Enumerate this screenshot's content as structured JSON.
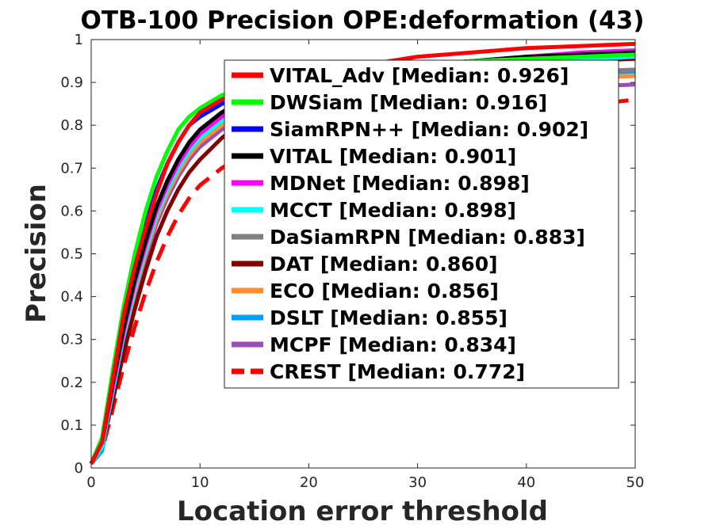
{
  "chart_data": {
    "type": "line",
    "title": "OTB-100 Precision OPE:deformation (43)",
    "xlabel": "Location error threshold",
    "ylabel": "Precision",
    "xlim": [
      0,
      50
    ],
    "ylim": [
      0,
      1
    ],
    "xticks": [
      "0",
      "10",
      "20",
      "30",
      "40",
      "50"
    ],
    "yticks": [
      "0",
      "0.1",
      "0.2",
      "0.3",
      "0.4",
      "0.5",
      "0.6",
      "0.7",
      "0.8",
      "0.9",
      "1"
    ],
    "grid": false,
    "legend_position": "top-right",
    "x": [
      0,
      1,
      2,
      3,
      4,
      5,
      6,
      7,
      8,
      9,
      10,
      12,
      14,
      16,
      18,
      20,
      25,
      30,
      35,
      40,
      45,
      50
    ],
    "series": [
      {
        "name": "VITAL_Adv [Median: 0.926]",
        "color": "#ff0000",
        "dash": "solid",
        "values": [
          0.01,
          0.06,
          0.21,
          0.36,
          0.47,
          0.56,
          0.64,
          0.71,
          0.76,
          0.8,
          0.83,
          0.86,
          0.88,
          0.9,
          0.91,
          0.92,
          0.94,
          0.96,
          0.97,
          0.98,
          0.985,
          0.99
        ]
      },
      {
        "name": "DWSiam [Median: 0.916]",
        "color": "#00ff00",
        "dash": "solid",
        "values": [
          0.01,
          0.07,
          0.23,
          0.38,
          0.5,
          0.6,
          0.68,
          0.74,
          0.79,
          0.82,
          0.84,
          0.87,
          0.89,
          0.9,
          0.91,
          0.92,
          0.93,
          0.94,
          0.95,
          0.955,
          0.96,
          0.965
        ]
      },
      {
        "name": "SiamRPN++ [Median: 0.902]",
        "color": "#0000ff",
        "dash": "solid",
        "values": [
          0.01,
          0.07,
          0.22,
          0.36,
          0.48,
          0.57,
          0.65,
          0.71,
          0.76,
          0.8,
          0.82,
          0.85,
          0.87,
          0.89,
          0.9,
          0.91,
          0.93,
          0.94,
          0.95,
          0.955,
          0.96,
          0.965
        ]
      },
      {
        "name": "VITAL [Median: 0.901]",
        "color": "#000000",
        "dash": "solid",
        "values": [
          0.01,
          0.06,
          0.2,
          0.33,
          0.44,
          0.53,
          0.61,
          0.67,
          0.72,
          0.76,
          0.79,
          0.83,
          0.86,
          0.88,
          0.89,
          0.9,
          0.92,
          0.94,
          0.95,
          0.96,
          0.965,
          0.97
        ]
      },
      {
        "name": "MDNet [Median: 0.898]",
        "color": "#ff00ff",
        "dash": "solid",
        "values": [
          0.01,
          0.06,
          0.19,
          0.32,
          0.43,
          0.52,
          0.6,
          0.66,
          0.71,
          0.75,
          0.78,
          0.82,
          0.85,
          0.87,
          0.89,
          0.9,
          0.92,
          0.94,
          0.95,
          0.96,
          0.97,
          0.975
        ]
      },
      {
        "name": "MCCT [Median: 0.898]",
        "color": "#00ffff",
        "dash": "solid",
        "values": [
          0.01,
          0.05,
          0.18,
          0.31,
          0.42,
          0.51,
          0.59,
          0.65,
          0.7,
          0.74,
          0.77,
          0.81,
          0.84,
          0.86,
          0.88,
          0.89,
          0.91,
          0.93,
          0.94,
          0.95,
          0.955,
          0.96
        ]
      },
      {
        "name": "DaSiamRPN [Median: 0.883]",
        "color": "#808080",
        "dash": "solid",
        "values": [
          0.01,
          0.06,
          0.19,
          0.32,
          0.43,
          0.52,
          0.59,
          0.65,
          0.7,
          0.74,
          0.77,
          0.81,
          0.83,
          0.85,
          0.86,
          0.87,
          0.89,
          0.9,
          0.91,
          0.92,
          0.925,
          0.93
        ]
      },
      {
        "name": "DAT [Median: 0.860]",
        "color": "#800000",
        "dash": "solid",
        "values": [
          0.01,
          0.05,
          0.16,
          0.27,
          0.37,
          0.46,
          0.54,
          0.6,
          0.65,
          0.69,
          0.72,
          0.77,
          0.81,
          0.83,
          0.85,
          0.86,
          0.89,
          0.91,
          0.93,
          0.94,
          0.95,
          0.955
        ]
      },
      {
        "name": "ECO [Median: 0.856]",
        "color": "#ff8c30",
        "dash": "solid",
        "values": [
          0.01,
          0.05,
          0.18,
          0.3,
          0.41,
          0.5,
          0.58,
          0.64,
          0.69,
          0.73,
          0.76,
          0.8,
          0.82,
          0.84,
          0.85,
          0.86,
          0.88,
          0.89,
          0.9,
          0.905,
          0.91,
          0.915
        ]
      },
      {
        "name": "DSLT [Median: 0.855]",
        "color": "#00a0ff",
        "dash": "solid",
        "values": [
          0.01,
          0.04,
          0.17,
          0.3,
          0.41,
          0.5,
          0.58,
          0.64,
          0.69,
          0.73,
          0.76,
          0.8,
          0.82,
          0.84,
          0.85,
          0.86,
          0.88,
          0.895,
          0.905,
          0.91,
          0.92,
          0.925
        ]
      },
      {
        "name": "MCPF [Median: 0.834]",
        "color": "#9b4fb0",
        "dash": "solid",
        "values": [
          0.01,
          0.05,
          0.17,
          0.29,
          0.4,
          0.49,
          0.57,
          0.63,
          0.68,
          0.72,
          0.75,
          0.79,
          0.81,
          0.83,
          0.84,
          0.85,
          0.86,
          0.87,
          0.88,
          0.885,
          0.89,
          0.895
        ]
      },
      {
        "name": "CREST [Median: 0.772]",
        "color": "#ff0000",
        "dash": "dashed",
        "values": [
          0.01,
          0.04,
          0.14,
          0.24,
          0.33,
          0.41,
          0.48,
          0.54,
          0.59,
          0.63,
          0.66,
          0.7,
          0.73,
          0.75,
          0.76,
          0.77,
          0.79,
          0.81,
          0.82,
          0.83,
          0.845,
          0.86
        ]
      }
    ]
  }
}
